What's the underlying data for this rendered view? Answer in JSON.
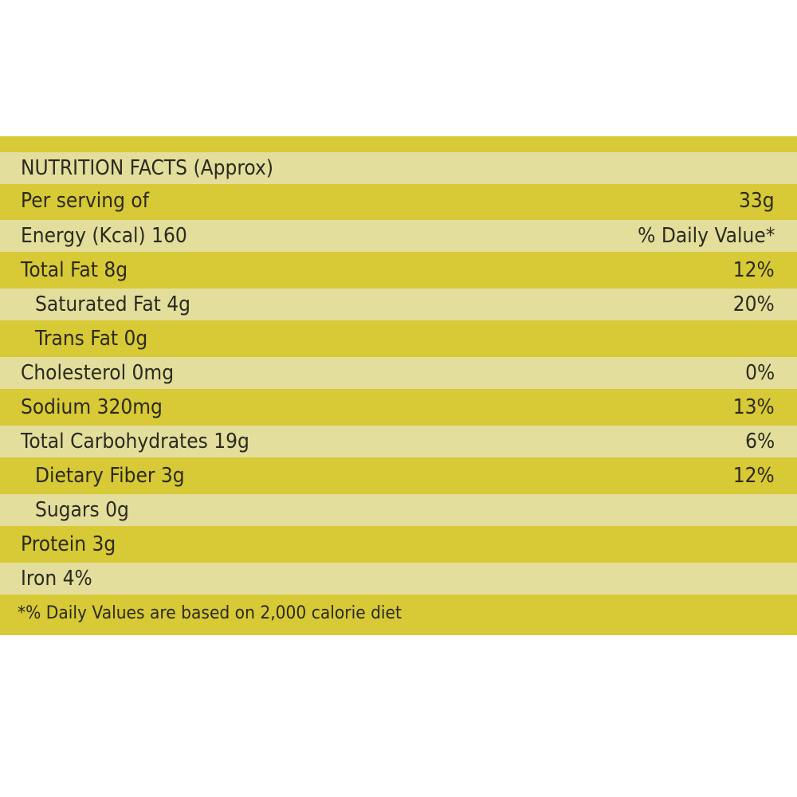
{
  "title": "NUTRITION FACTS (Approx)",
  "rows": [
    {
      "label": "Per serving of",
      "value": "33g",
      "indent": false
    },
    {
      "label": "Energy (Kcal) 160",
      "value": "% Daily Value*",
      "indent": false
    },
    {
      "label": "Total Fat 8g",
      "value": "12%",
      "indent": false
    },
    {
      "label": "Saturated Fat 4g",
      "value": "20%",
      "indent": true
    },
    {
      "label": "Trans Fat 0g",
      "value": "",
      "indent": true
    },
    {
      "label": "Cholesterol 0mg",
      "value": "0%",
      "indent": false
    },
    {
      "label": "Sodium 320mg",
      "value": "13%",
      "indent": false
    },
    {
      "label": "Total Carbohydrates 19g",
      "value": "6%",
      "indent": false
    },
    {
      "label": "Dietary Fiber 3g",
      "value": "12%",
      "indent": true
    },
    {
      "label": "Sugars 0g",
      "value": "",
      "indent": true
    },
    {
      "label": "Protein 3g",
      "value": "",
      "indent": false
    },
    {
      "label": "Iron 4%",
      "value": "",
      "indent": false
    }
  ],
  "footnote": "*% Daily Values are based on 2,000 calorie diet",
  "colors": {
    "stripe_light": "#e3de9c",
    "stripe_dark": "#d8c936",
    "text": "#2b2a1e"
  }
}
